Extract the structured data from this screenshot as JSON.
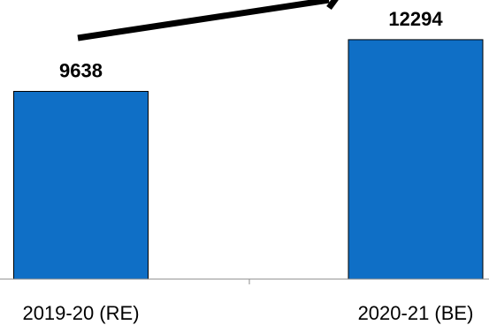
{
  "chart_data": {
    "type": "bar",
    "categories": [
      "2019-20 (RE)",
      "2020-21 (BE)"
    ],
    "values": [
      9638,
      12294
    ],
    "data_labels": [
      "9638",
      "12294"
    ],
    "title": "",
    "xlabel": "",
    "ylabel": "",
    "ylim": [
      0,
      16000
    ],
    "grid": false,
    "legend": "none",
    "bar_color": "#0f6fc6",
    "annotation": "growth-arrow"
  }
}
